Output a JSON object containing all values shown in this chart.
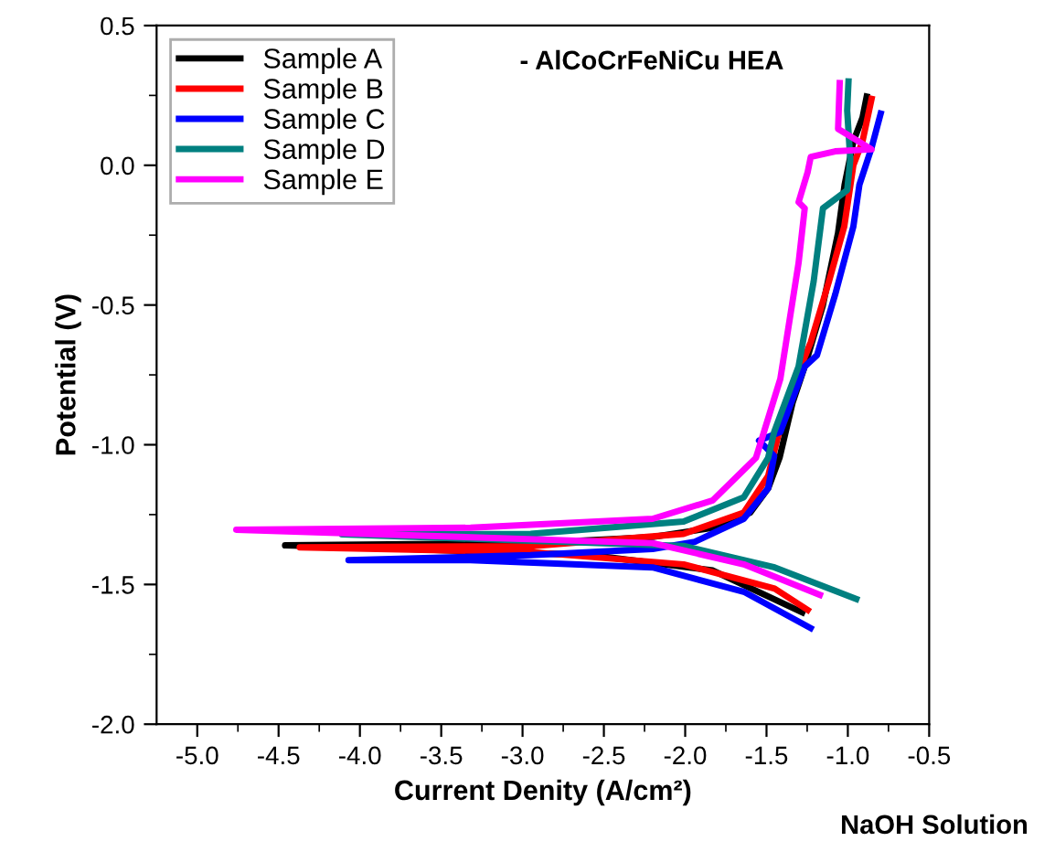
{
  "chart_data": {
    "type": "line",
    "xlabel": "Current Denity (A/cm²)",
    "ylabel": "Potential (V)",
    "annotations": [
      "- AlCoCrFeNiCu HEA",
      "NaOH Solution"
    ],
    "xlim": [
      -5.25,
      -0.5
    ],
    "ylim": [
      -2.0,
      0.5
    ],
    "xticks": [
      {
        "value": -5.0,
        "label": "-5.0"
      },
      {
        "value": -4.75,
        "label": null
      },
      -4.5,
      {
        "value": -4.25,
        "label": null
      },
      {
        "value": -4.0,
        "label": "-4.0"
      },
      {
        "value": -3.75,
        "label": null
      },
      -3.5,
      {
        "value": -3.25,
        "label": null
      },
      {
        "value": -3.0,
        "label": "-3.0"
      },
      {
        "value": -2.75,
        "label": null
      },
      -2.5,
      {
        "value": -2.25,
        "label": null
      },
      {
        "value": -2.0,
        "label": "-2.0"
      },
      {
        "value": -1.75,
        "label": null
      },
      -1.5,
      {
        "value": -1.25,
        "label": null
      },
      {
        "value": -1.0,
        "label": "-1.0"
      },
      {
        "value": -0.75,
        "label": null
      },
      -0.5
    ],
    "yticks": [
      {
        "value": -2.0,
        "label": "-2.0"
      },
      {
        "value": -1.75,
        "label": null
      },
      -1.5,
      {
        "value": -1.25,
        "label": null
      },
      {
        "value": -1.0,
        "label": "-1.0"
      },
      {
        "value": -0.75,
        "label": null
      },
      -0.5,
      {
        "value": -0.25,
        "label": null
      },
      {
        "value": 0.0,
        "label": "0.0"
      },
      {
        "value": 0.25,
        "label": null
      },
      0.5
    ],
    "grid": false,
    "legend": "top left",
    "line_style": "solid",
    "marker": "none",
    "series": [
      {
        "name": "Sample A",
        "color": "#000000",
        "x": [
          -1.28,
          -1.83,
          -2.58,
          -3.7,
          -4.46,
          -2.95,
          -2.2,
          -1.83,
          -1.6,
          -1.49,
          -1.42,
          -1.34,
          -1.265,
          -1.153,
          -1.06,
          -1.02,
          -0.966,
          -0.91,
          -0.884
        ],
        "values": [
          -1.6,
          -1.45,
          -1.395,
          -1.373,
          -1.36,
          -1.352,
          -1.33,
          -1.297,
          -1.243,
          -1.156,
          -1.047,
          -0.85,
          -0.72,
          -0.5,
          -0.242,
          -0.07,
          0.085,
          0.17,
          0.246
        ]
      },
      {
        "name": "Sample B",
        "color": "#ff0000",
        "x": [
          -1.247,
          -1.45,
          -2.01,
          -2.95,
          -4.37,
          -2.95,
          -2.01,
          -1.64,
          -1.49,
          -1.453,
          -1.378,
          -1.228,
          -1.116,
          -1.022,
          -0.966,
          -0.91,
          -0.854
        ],
        "values": [
          -1.591,
          -1.515,
          -1.428,
          -1.384,
          -1.367,
          -1.363,
          -1.319,
          -1.243,
          -1.112,
          -1.025,
          -0.851,
          -0.633,
          -0.415,
          -0.219,
          0.0,
          0.085,
          0.238
        ]
      },
      {
        "name": "Sample C",
        "color": "#0000ff",
        "x": [
          -1.229,
          -1.64,
          -2.2,
          -3.32,
          -4.07,
          -2.95,
          -2.2,
          -1.94,
          -1.64,
          -1.49,
          -1.453,
          -1.546,
          -1.415,
          -1.265,
          -1.19,
          -1.078,
          -0.966,
          -0.929,
          -0.854,
          -0.798
        ],
        "values": [
          -1.656,
          -1.526,
          -1.439,
          -1.413,
          -1.413,
          -1.395,
          -1.373,
          -1.347,
          -1.265,
          -1.156,
          -1.04,
          -0.985,
          -0.954,
          -0.72,
          -0.68,
          -0.463,
          -0.219,
          -0.07,
          0.063,
          0.185
        ]
      },
      {
        "name": "Sample D",
        "color": "#008080",
        "x": [
          -0.948,
          -1.45,
          -2.01,
          -4.11,
          -2.95,
          -2.01,
          -1.64,
          -1.49,
          -1.453,
          -1.303,
          -1.21,
          -1.153,
          -1.004,
          -0.985,
          -1.004,
          -0.996
        ],
        "values": [
          -1.552,
          -1.439,
          -1.362,
          -1.321,
          -1.319,
          -1.275,
          -1.188,
          -1.047,
          -0.954,
          -0.72,
          -0.415,
          -0.154,
          -0.089,
          0.02,
          0.196,
          0.3
        ]
      },
      {
        "name": "Sample E",
        "color": "#ff00ff",
        "x": [
          -1.172,
          -1.64,
          -2.2,
          -4.76,
          -3.32,
          -2.2,
          -1.83,
          -1.565,
          -1.415,
          -1.303,
          -1.265,
          -1.303,
          -1.247,
          -1.228,
          -1.078,
          -0.854,
          -1.06,
          -1.05
        ],
        "values": [
          -1.537,
          -1.428,
          -1.352,
          -1.304,
          -1.297,
          -1.265,
          -1.199,
          -1.047,
          -0.764,
          -0.35,
          -0.154,
          -0.132,
          -0.024,
          0.03,
          0.05,
          0.057,
          0.13,
          0.294
        ]
      }
    ]
  }
}
